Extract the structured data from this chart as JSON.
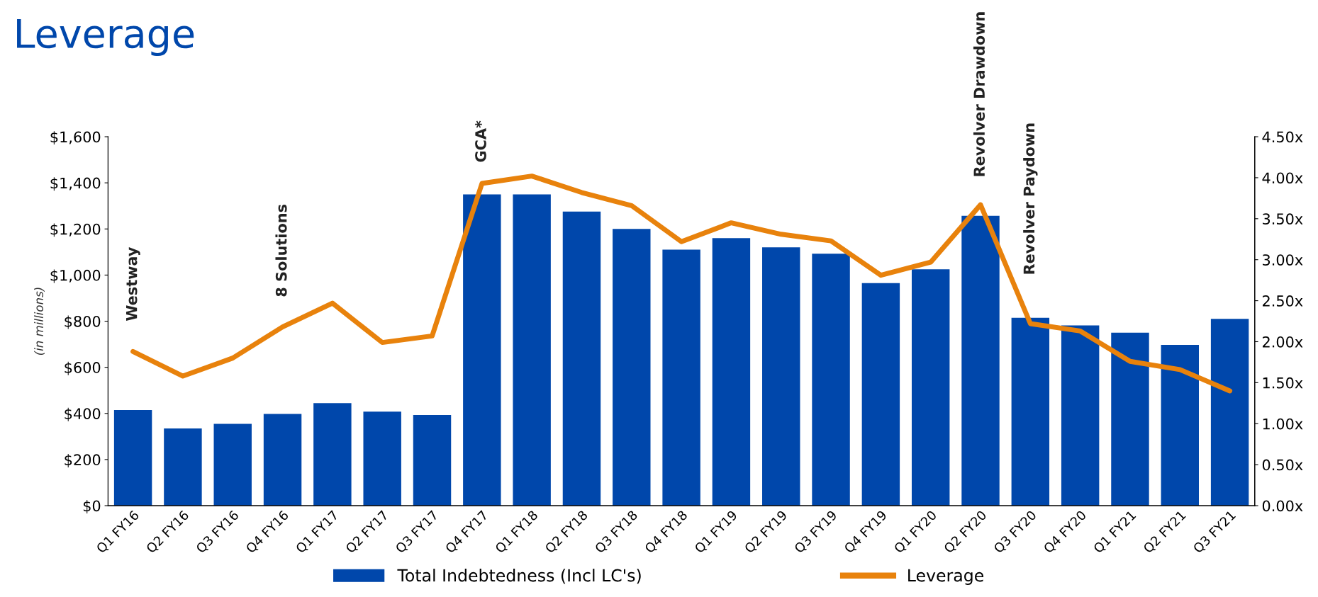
{
  "chart_data": {
    "type": "bar",
    "title": "Leverage",
    "ylabel": "(in millions)",
    "categories": [
      "Q1 FY16",
      "Q2 FY16",
      "Q3 FY16",
      "Q4 FY16",
      "Q1 FY17",
      "Q2 FY17",
      "Q3 FY17",
      "Q4 FY17",
      "Q1 FY18",
      "Q2 FY18",
      "Q3 FY18",
      "Q4 FY18",
      "Q1 FY19",
      "Q2 FY19",
      "Q3 FY19",
      "Q4 FY19",
      "Q1 FY20",
      "Q2 FY20",
      "Q3 FY20",
      "Q4 FY20",
      "Q1 FY21",
      "Q2 FY21",
      "Q3 FY21"
    ],
    "series": [
      {
        "name": "Total Indebtedness (Incl LC's)",
        "color": "#0047ab",
        "values": [
          415,
          335,
          355,
          398,
          445,
          408,
          393,
          1350,
          1350,
          1275,
          1200,
          1110,
          1160,
          1120,
          1093,
          965,
          1025,
          1257,
          815,
          782,
          750,
          697,
          810
        ]
      },
      {
        "name": "Leverage",
        "type": "line",
        "axis": "y2",
        "color": "#e8820c",
        "values": [
          1.88,
          1.58,
          1.8,
          2.18,
          2.47,
          1.99,
          2.07,
          3.93,
          4.02,
          3.82,
          3.66,
          3.22,
          3.45,
          3.31,
          3.23,
          2.81,
          2.97,
          3.67,
          2.22,
          2.13,
          1.76,
          1.66,
          1.4
        ]
      }
    ],
    "ylim": [
      0,
      1600
    ],
    "yticks": [
      {
        "value": 0,
        "label": "$0"
      },
      {
        "value": 200,
        "label": "$200"
      },
      {
        "value": 400,
        "label": "$400"
      },
      {
        "value": 600,
        "label": "$600"
      },
      {
        "value": 800,
        "label": "$800"
      },
      {
        "value": 1000,
        "label": "$1,000"
      },
      {
        "value": 1200,
        "label": "$1,200"
      },
      {
        "value": 1400,
        "label": "$1,400"
      },
      {
        "value": 1600,
        "label": "$1,600"
      }
    ],
    "y2lim": [
      0,
      4.5
    ],
    "y2ticks": [
      {
        "value": 0,
        "label": "0.00x"
      },
      {
        "value": 0.5,
        "label": "0.50x"
      },
      {
        "value": 1,
        "label": "1.00x"
      },
      {
        "value": 1.5,
        "label": "1.50x"
      },
      {
        "value": 2,
        "label": "2.00x"
      },
      {
        "value": 2.5,
        "label": "2.50x"
      },
      {
        "value": 3,
        "label": "3.00x"
      },
      {
        "value": 3.5,
        "label": "3.50x"
      },
      {
        "value": 4,
        "label": "4.00x"
      },
      {
        "value": 4.5,
        "label": "4.50x"
      }
    ],
    "annotations": [
      "Westway",
      "8 Solutions",
      "GCA*",
      "Revolver Drawdown",
      "Revolver Paydown"
    ],
    "grid": false,
    "legend": "bottom",
    "marker": "none",
    "line_style": "solid"
  }
}
